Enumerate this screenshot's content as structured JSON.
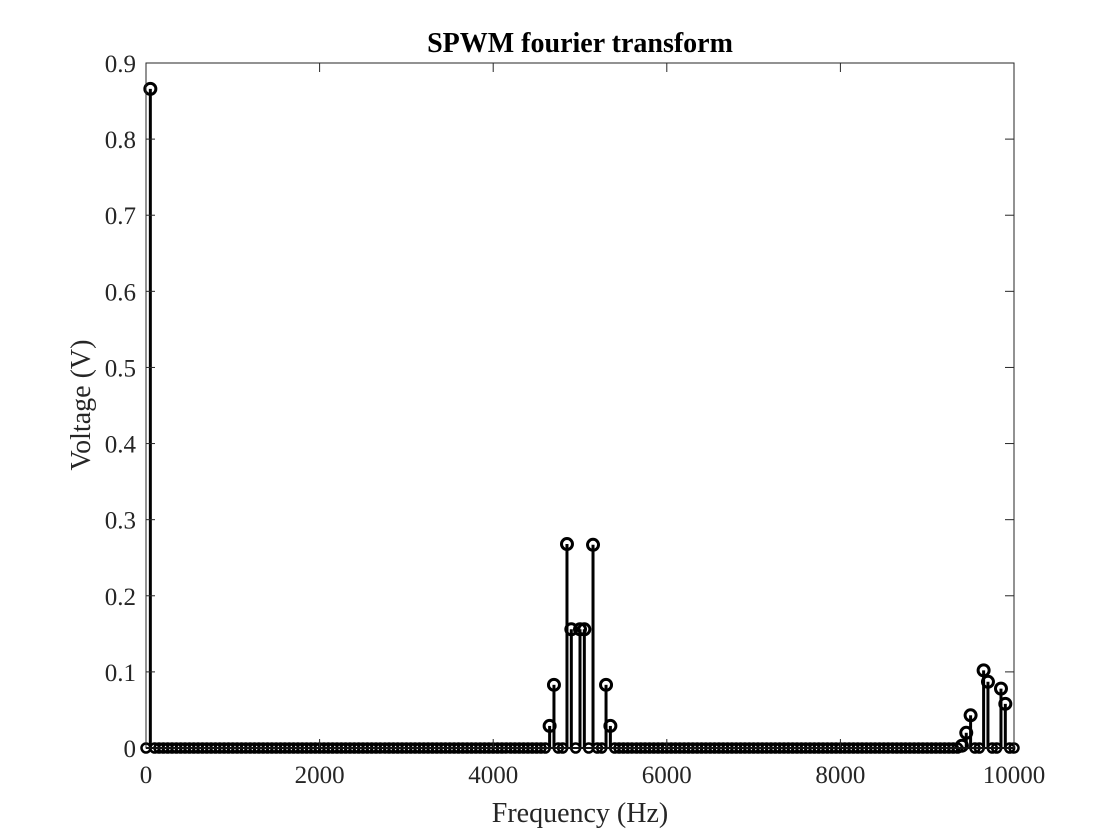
{
  "chart_data": {
    "type": "stem",
    "title": "SPWM fourier transform",
    "xlabel": "Frequency (Hz)",
    "ylabel": "Voltage (V)",
    "xlim": [
      0,
      10000
    ],
    "ylim": [
      0,
      0.9
    ],
    "xticks": [
      "0",
      "2000",
      "4000",
      "6000",
      "8000",
      "10000"
    ],
    "yticks": [
      "0",
      "0.1",
      "0.2",
      "0.3",
      "0.4",
      "0.5",
      "0.6",
      "0.7",
      "0.8",
      "0.9"
    ],
    "xtick_values": [
      0,
      2000,
      4000,
      6000,
      8000,
      10000
    ],
    "ytick_values": [
      0,
      0.1,
      0.2,
      0.3,
      0.4,
      0.5,
      0.6,
      0.7,
      0.8,
      0.9
    ],
    "grid": false,
    "box": true,
    "series": [
      {
        "marker": "circle",
        "color": "#000000",
        "baseline_step": 50,
        "x": [
          50,
          4650,
          4700,
          4850,
          4900,
          5000,
          5050,
          5150,
          5300,
          5350,
          9400,
          9450,
          9500,
          9650,
          9700,
          9850,
          9900
        ],
        "y": [
          0.866,
          0.029,
          0.083,
          0.268,
          0.156,
          0.156,
          0.156,
          0.267,
          0.083,
          0.029,
          0.003,
          0.02,
          0.043,
          0.102,
          0.087,
          0.078,
          0.058
        ]
      }
    ]
  }
}
